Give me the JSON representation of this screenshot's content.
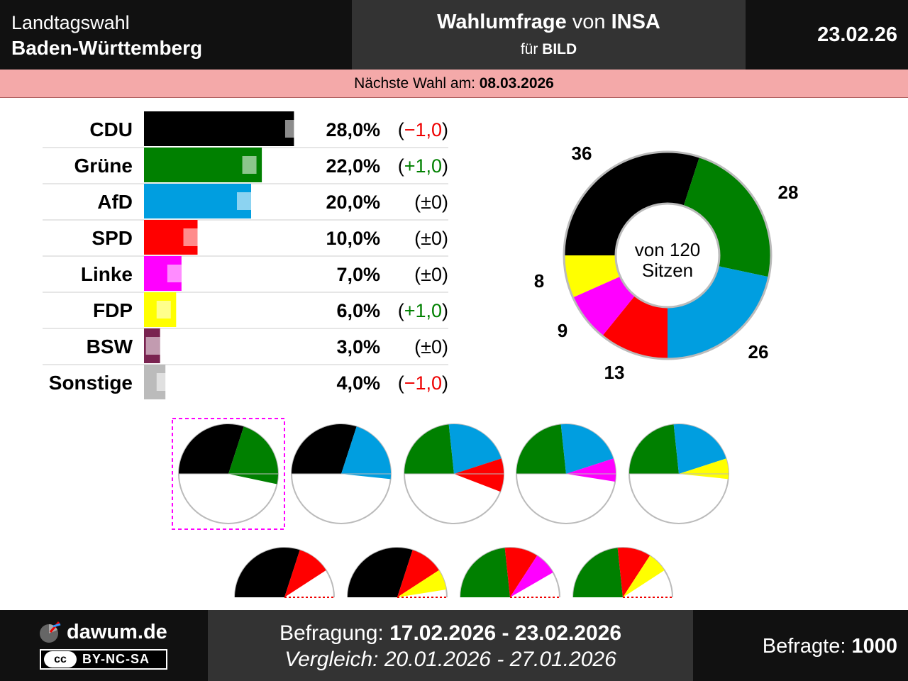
{
  "header": {
    "election_type": "Landtagswahl",
    "state": "Baden-Württemberg",
    "poll_title_a": "Wahlumfrage",
    "poll_title_b": "von",
    "institute": "INSA",
    "client_prefix": "für",
    "client": "BILD",
    "date": "23.02.26"
  },
  "next_election": {
    "label": "Nächste Wahl am:",
    "date": "08.03.2026"
  },
  "chart_data": {
    "type": "bar",
    "title": "Wahlumfrage von INSA",
    "categories": [
      "CDU",
      "Grüne",
      "AfD",
      "SPD",
      "Linke",
      "FDP",
      "BSW",
      "Sonstige"
    ],
    "series": [
      {
        "name": "Umfrage 17.02.2026 - 23.02.2026",
        "values": [
          28.0,
          22.0,
          20.0,
          10.0,
          7.0,
          6.0,
          3.0,
          4.0
        ]
      },
      {
        "name": "Vergleich 20.01.2026 - 27.01.2026",
        "values": [
          29.0,
          21.0,
          20.0,
          10.0,
          7.0,
          5.0,
          3.0,
          5.0
        ]
      }
    ],
    "value_labels": [
      "28,0%",
      "22,0%",
      "20,0%",
      "10,0%",
      "7,0%",
      "6,0%",
      "3,0%",
      "4,0%"
    ],
    "change_labels": [
      "−1,0",
      "+1,0",
      "±0",
      "±0",
      "±0",
      "+1,0",
      "±0",
      "−1,0"
    ],
    "change_signs": [
      "neg",
      "pos",
      "zero",
      "zero",
      "zero",
      "pos",
      "zero",
      "neg"
    ],
    "colors": [
      "#000000",
      "#008000",
      "#009ee0",
      "#ff0000",
      "#ff00ff",
      "#ffff00",
      "#792350",
      "#bbbbbb"
    ],
    "seats": {
      "type": "pie",
      "total_label": "von 120",
      "unit_label": "Sitzen",
      "parties": [
        "CDU",
        "Grüne",
        "AfD",
        "SPD",
        "Linke",
        "FDP"
      ],
      "values": [
        36,
        28,
        26,
        13,
        9,
        8
      ],
      "colors": [
        "#000000",
        "#008000",
        "#009ee0",
        "#ff0000",
        "#ff00ff",
        "#ffff00"
      ]
    },
    "coalitions": [
      {
        "parties": [
          "CDU",
          "Grüne"
        ],
        "seats": [
          36,
          28
        ],
        "highlight": true
      },
      {
        "parties": [
          "CDU",
          "AfD"
        ],
        "seats": [
          36,
          26
        ]
      },
      {
        "parties": [
          "Grüne",
          "AfD",
          "SPD"
        ],
        "seats": [
          28,
          26,
          13
        ]
      },
      {
        "parties": [
          "Grüne",
          "AfD",
          "Linke"
        ],
        "seats": [
          28,
          26,
          9
        ]
      },
      {
        "parties": [
          "Grüne",
          "AfD",
          "FDP"
        ],
        "seats": [
          28,
          26,
          8
        ]
      }
    ],
    "minority_coalitions": [
      {
        "parties": [
          "CDU",
          "SPD"
        ],
        "seats": [
          36,
          13
        ]
      },
      {
        "parties": [
          "CDU",
          "SPD",
          "FDP"
        ],
        "seats": [
          36,
          13,
          8
        ]
      },
      {
        "parties": [
          "Grüne",
          "SPD",
          "Linke"
        ],
        "seats": [
          28,
          13,
          9
        ]
      },
      {
        "parties": [
          "Grüne",
          "SPD",
          "FDP"
        ],
        "seats": [
          28,
          13,
          8
        ]
      }
    ]
  },
  "footer": {
    "site": "dawum.de",
    "cc_logo": "cc",
    "license": "BY-NC-SA",
    "survey_label": "Befragung:",
    "survey_period": "17.02.2026 - 23.02.2026",
    "compare_label": "Vergleich:",
    "compare_period": "20.01.2026 - 27.01.2026",
    "respondents_label": "Befragte:",
    "respondents": "1000"
  }
}
